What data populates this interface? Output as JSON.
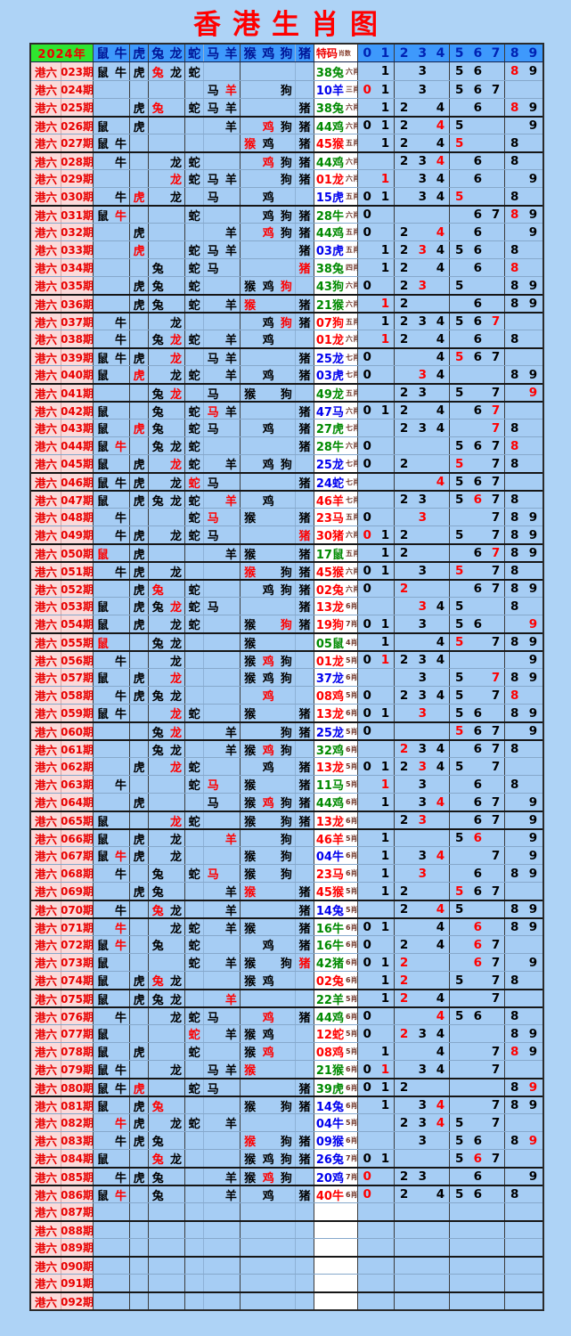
{
  "colors": {
    "green": "#008a00",
    "blue": "#0000ee",
    "red": "#ff0000",
    "black": "#000000"
  },
  "chart_data": {
    "type": "table",
    "title": "香港生肖图",
    "year_label": "2024年",
    "row_prefix": "港六",
    "zodiac_columns": [
      "鼠",
      "牛",
      "虎",
      "兔",
      "龙",
      "蛇",
      "马",
      "羊",
      "猴",
      "鸡",
      "狗",
      "猪"
    ],
    "special_column_label": "特码",
    "special_column_sublabel": "肖数",
    "digit_columns": [
      "0",
      "1",
      "2",
      "3",
      "4",
      "5",
      "6",
      "7",
      "8",
      "9"
    ],
    "mark_legend": {
      "b": "black mark",
      "r": "red mark (winning zodiac / winning digit)",
      ".": "empty"
    },
    "special_color_legend": {
      "g": "green wave",
      "b": "blue wave",
      "r": "red wave"
    },
    "rows": [
      {
        "p": "023期",
        "m": "bbbrbb......",
        "s": "38兔",
        "c": "g",
        "x": "六肖",
        "d": ".b.b.bb.rb",
        "t": 0
      },
      {
        "p": "024期",
        "m": "......br..b.",
        "s": "10羊",
        "c": "b",
        "x": "三肖",
        "d": "rb.b.bbb..",
        "t": 0
      },
      {
        "p": "025期",
        "m": "..br.bbb...b",
        "s": "38兔",
        "c": "g",
        "x": "六肖",
        "d": ".bb.b.b.rb",
        "t": 0
      },
      {
        "p": "026期",
        "m": "b.b....b.rbb",
        "s": "44鸡",
        "c": "g",
        "x": "六肖",
        "d": "bbb.rb...b",
        "t": 1
      },
      {
        "p": "027期",
        "m": "bb......rb.b",
        "s": "45猴",
        "c": "r",
        "x": "五肖",
        "d": ".bb.br..b.",
        "t": 0
      },
      {
        "p": "028期",
        "m": ".b..bb...rbb",
        "s": "44鸡",
        "c": "g",
        "x": "六肖",
        "d": "..bbr.b.b.",
        "t": 1
      },
      {
        "p": "029期",
        "m": "....rbbb..bb",
        "s": "01龙",
        "c": "r",
        "x": "六肖",
        "d": ".r.bb.b..b",
        "t": 0
      },
      {
        "p": "030期",
        "m": ".br.b.b..b..",
        "s": "15虎",
        "c": "b",
        "x": "五肖",
        "d": "bb.bbr..b.",
        "t": 0
      },
      {
        "p": "031期",
        "m": "br...b...bbb",
        "s": "28牛",
        "c": "g",
        "x": "六肖",
        "d": "b.....bbrb",
        "t": 1
      },
      {
        "p": "032期",
        "m": "..b....b.rbb",
        "s": "44鸡",
        "c": "g",
        "x": "五肖",
        "d": "b.b.r.b..b",
        "t": 0
      },
      {
        "p": "033期",
        "m": "..r..bbb...b",
        "s": "03虎",
        "c": "b",
        "x": "五肖",
        "d": ".bbrbbb.b.",
        "t": 0
      },
      {
        "p": "034期",
        "m": "...b.bb....r",
        "s": "38兔",
        "c": "g",
        "x": "四肖",
        "d": ".bb.b.b.r.",
        "t": 0
      },
      {
        "p": "035期",
        "m": "..bb.b..bbr.",
        "s": "43狗",
        "c": "g",
        "x": "六肖",
        "d": "b.br.b..bb",
        "t": 0
      },
      {
        "p": "036期",
        "m": "..bb.b.br..b",
        "s": "21猴",
        "c": "g",
        "x": "六肖",
        "d": ".rb...b.bb",
        "t": 1
      },
      {
        "p": "037期",
        "m": ".b..b....brb",
        "s": "07狗",
        "c": "r",
        "x": "五肖",
        "d": ".bbbbbbr..",
        "t": 1
      },
      {
        "p": "038期",
        "m": ".b.brb.b.b..",
        "s": "01龙",
        "c": "r",
        "x": "六肖",
        "d": ".rb.b.b.b.",
        "t": 0
      },
      {
        "p": "039期",
        "m": "bbb.r.bb...b",
        "s": "25龙",
        "c": "b",
        "x": "七肖",
        "d": "b...brbb..",
        "t": 1
      },
      {
        "p": "040期",
        "m": "b.r.bb.b.b.b",
        "s": "03虎",
        "c": "b",
        "x": "七肖",
        "d": "b..rb...bb",
        "t": 0
      },
      {
        "p": "041期",
        "m": "...br.b.b.b.",
        "s": "49龙",
        "c": "g",
        "x": "五肖",
        "d": "..bb.b.b.r",
        "t": 1
      },
      {
        "p": "042期",
        "m": "b..b.brb...b",
        "s": "47马",
        "c": "b",
        "x": "六肖",
        "d": "bbb.b.br..",
        "t": 1
      },
      {
        "p": "043期",
        "m": "b.rb.bb..b.b",
        "s": "27虎",
        "c": "g",
        "x": "七肖",
        "d": "..bbb..rb.",
        "t": 0
      },
      {
        "p": "044期",
        "m": "br.bbb.....b",
        "s": "28牛",
        "c": "g",
        "x": "六肖",
        "d": "b....bbbr.",
        "t": 0
      },
      {
        "p": "045期",
        "m": "b.b.rb.b.bb.",
        "s": "25龙",
        "c": "b",
        "x": "七肖",
        "d": "b.b..r.bb.",
        "t": 0
      },
      {
        "p": "046期",
        "m": "bbb.brb....b",
        "s": "24蛇",
        "c": "b",
        "x": "七肖",
        "d": "....rbbb..",
        "t": 1
      },
      {
        "p": "047期",
        "m": "b.bbbb.r.b..",
        "s": "46羊",
        "c": "r",
        "x": "七肖",
        "d": "..bb.brbb.",
        "t": 1
      },
      {
        "p": "048期",
        "m": ".b...br.b..b",
        "s": "23马",
        "c": "r",
        "x": "五肖",
        "d": "b..r...bbb",
        "t": 0
      },
      {
        "p": "049期",
        "m": ".bb.bbb....r",
        "s": "30猪",
        "c": "r",
        "x": "六肖",
        "d": "rbb..b.bbb",
        "t": 0
      },
      {
        "p": "050期",
        "m": "r.b....bb..b",
        "s": "17鼠",
        "c": "g",
        "x": "五肖",
        "d": ".bb...brbb",
        "t": 1
      },
      {
        "p": "051期",
        "m": ".bb.b...r.bb",
        "s": "45猴",
        "c": "r",
        "x": "六肖",
        "d": "bb.b.r.bb.",
        "t": 1
      },
      {
        "p": "052期",
        "m": "..br.b...bbb",
        "s": "02兔",
        "c": "r",
        "x": "六肖",
        "d": "b.r...bbbb",
        "t": 1
      },
      {
        "p": "053期",
        "m": "b.bbrbb....b",
        "s": "13龙",
        "c": "r",
        "x": "6肖",
        "d": "...rbb..b.",
        "t": 0
      },
      {
        "p": "054期",
        "m": "b.b.bb..b.rb",
        "s": "19狗",
        "c": "r",
        "x": "7肖",
        "d": "bb.b.bb..r",
        "t": 0
      },
      {
        "p": "055期",
        "m": "r..bb...b...",
        "s": "05鼠",
        "c": "g",
        "x": "4肖",
        "d": ".b..br.bbb",
        "t": 1
      },
      {
        "p": "056期",
        "m": ".b..b...brb.",
        "s": "01龙",
        "c": "r",
        "x": "5肖",
        "d": "brbbb....b",
        "t": 1
      },
      {
        "p": "057期",
        "m": "b.b.r...bbb.",
        "s": "37龙",
        "c": "b",
        "x": "6肖",
        "d": "...b.b.rbb",
        "t": 0
      },
      {
        "p": "058期",
        "m": ".bbbb....r..",
        "s": "08鸡",
        "c": "r",
        "x": "5肖",
        "d": "b.bbbb.br.",
        "t": 0
      },
      {
        "p": "059期",
        "m": "bb..rb..b..b",
        "s": "13龙",
        "c": "r",
        "x": "6肖",
        "d": "bb.r.bb.bb",
        "t": 0
      },
      {
        "p": "060期",
        "m": "...br..b..bb",
        "s": "25龙",
        "c": "b",
        "x": "5肖",
        "d": "b....rbb.b",
        "t": 1
      },
      {
        "p": "061期",
        "m": "...bb..bbrb.",
        "s": "32鸡",
        "c": "g",
        "x": "6肖",
        "d": "..rbb.bbb.",
        "t": 1
      },
      {
        "p": "062期",
        "m": "..b.rb...b.b",
        "s": "13龙",
        "c": "r",
        "x": "5肖",
        "d": "bbbrbb.b..",
        "t": 0
      },
      {
        "p": "063期",
        "m": ".b...br.b..b",
        "s": "11马",
        "c": "g",
        "x": "5肖",
        "d": ".r.b..b.b.",
        "t": 0
      },
      {
        "p": "064期",
        "m": "..b...b.brbb",
        "s": "44鸡",
        "c": "g",
        "x": "6肖",
        "d": ".b.br.bb.b",
        "t": 0
      },
      {
        "p": "065期",
        "m": "b...rb..b.bb",
        "s": "13龙",
        "c": "r",
        "x": "6肖",
        "d": "..br..bb.b",
        "t": 1
      },
      {
        "p": "066期",
        "m": "b.b.b..r..b.",
        "s": "46羊",
        "c": "r",
        "x": "5肖",
        "d": ".b...br..b",
        "t": 1
      },
      {
        "p": "067期",
        "m": "brb.b...b.b.",
        "s": "04牛",
        "c": "b",
        "x": "6肖",
        "d": ".b.br..b.b",
        "t": 0
      },
      {
        "p": "068期",
        "m": ".b.b.br.b.b.",
        "s": "23马",
        "c": "r",
        "x": "6肖",
        "d": ".b.r..b.bb",
        "t": 0
      },
      {
        "p": "069期",
        "m": "..bb...br..b",
        "s": "45猴",
        "c": "r",
        "x": "5肖",
        "d": ".bb..rbb..",
        "t": 0
      },
      {
        "p": "070期",
        "m": ".b.rb..b...b",
        "s": "14兔",
        "c": "b",
        "x": "5肖",
        "d": "..b.rb..bb",
        "t": 1
      },
      {
        "p": "071期",
        "m": ".r..bb.bb..b",
        "s": "16牛",
        "c": "g",
        "x": "6肖",
        "d": "bb..b.r.bb",
        "t": 1
      },
      {
        "p": "072期",
        "m": "br.b.b...b.b",
        "s": "16牛",
        "c": "g",
        "x": "6肖",
        "d": "b.b.b.rb..",
        "t": 0
      },
      {
        "p": "073期",
        "m": "b....b.bb.br",
        "s": "42猪",
        "c": "g",
        "x": "6肖",
        "d": "bbr...rb.b",
        "t": 0
      },
      {
        "p": "074期",
        "m": "b.brb...bb..",
        "s": "02兔",
        "c": "r",
        "x": "6肖",
        "d": ".br..b.bb.",
        "t": 0
      },
      {
        "p": "075期",
        "m": "b.bbb..r....",
        "s": "22羊",
        "c": "g",
        "x": "5肖",
        "d": ".br.b..b..",
        "t": 1
      },
      {
        "p": "076期",
        "m": ".b..bbb..r.b",
        "s": "44鸡",
        "c": "g",
        "x": "6肖",
        "d": "b...rbb.b.",
        "t": 1
      },
      {
        "p": "077期",
        "m": "b....r.bbb..",
        "s": "12蛇",
        "c": "r",
        "x": "5肖",
        "d": "b.rbb...bb",
        "t": 0
      },
      {
        "p": "078期",
        "m": "b.b..b..br..",
        "s": "08鸡",
        "c": "r",
        "x": "5肖",
        "d": ".b..b..brb",
        "t": 0
      },
      {
        "p": "079期",
        "m": "bb..b.bbr...",
        "s": "21猴",
        "c": "g",
        "x": "6肖",
        "d": "br.bb..b..",
        "t": 0
      },
      {
        "p": "080期",
        "m": "bbr..bb....b",
        "s": "39虎",
        "c": "g",
        "x": "6肖",
        "d": "bbb.....br",
        "t": 1
      },
      {
        "p": "081期",
        "m": "b.br....b.bb",
        "s": "14兔",
        "c": "b",
        "x": "6肖",
        "d": ".b.br..bbb",
        "t": 1
      },
      {
        "p": "082期",
        "m": ".rb.bb.b....",
        "s": "04牛",
        "c": "b",
        "x": "5肖",
        "d": "..bbrb.b..",
        "t": 0
      },
      {
        "p": "083期",
        "m": ".bbb....r.bb",
        "s": "09猴",
        "c": "b",
        "x": "6肖",
        "d": "...b.bb.br",
        "t": 0
      },
      {
        "p": "084期",
        "m": "b..rb...bbbb",
        "s": "26兔",
        "c": "b",
        "x": "7肖",
        "d": "bb...brb..",
        "t": 0
      },
      {
        "p": "085期",
        "m": ".bbb...bbrb.",
        "s": "20鸡",
        "c": "b",
        "x": "7肖",
        "d": "r.bb..b..b",
        "t": 1
      },
      {
        "p": "086期",
        "m": "br.b...b.b.b",
        "s": "40牛",
        "c": "r",
        "x": "6肖",
        "d": "r.b.bbb.b.",
        "t": 1
      },
      {
        "p": "087期",
        "m": "............",
        "s": "",
        "c": "",
        "x": "",
        "d": "..........",
        "t": 0
      },
      {
        "p": "088期",
        "m": "............",
        "s": "",
        "c": "",
        "x": "",
        "d": "..........",
        "t": 1
      },
      {
        "p": "089期",
        "m": "............",
        "s": "",
        "c": "",
        "x": "",
        "d": "..........",
        "t": 0
      },
      {
        "p": "090期",
        "m": "............",
        "s": "",
        "c": "",
        "x": "",
        "d": "..........",
        "t": 1
      },
      {
        "p": "091期",
        "m": "............",
        "s": "",
        "c": "",
        "x": "",
        "d": "..........",
        "t": 0
      },
      {
        "p": "092期",
        "m": "............",
        "s": "",
        "c": "",
        "x": "",
        "d": "..........",
        "t": 1
      }
    ]
  }
}
